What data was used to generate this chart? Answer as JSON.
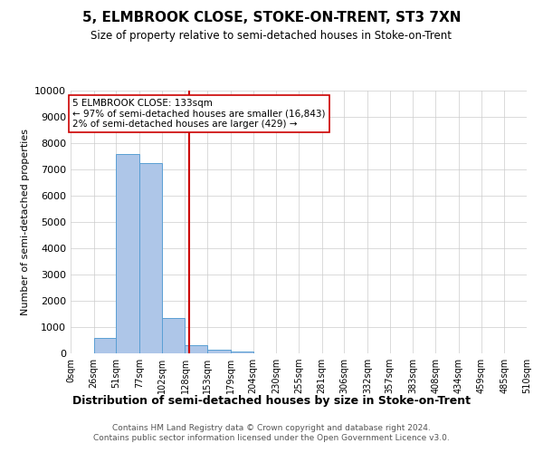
{
  "title": "5, ELMBROOK CLOSE, STOKE-ON-TRENT, ST3 7XN",
  "subtitle": "Size of property relative to semi-detached houses in Stoke-on-Trent",
  "xlabel": "Distribution of semi-detached houses by size in Stoke-on-Trent",
  "ylabel": "Number of semi-detached properties",
  "bin_edges": [
    0,
    26,
    51,
    77,
    102,
    128,
    153,
    179,
    204,
    230,
    255,
    281,
    306,
    332,
    357,
    383,
    408,
    434,
    459,
    485,
    510
  ],
  "bar_heights": [
    0,
    600,
    7600,
    7250,
    1350,
    300,
    150,
    80,
    0,
    0,
    0,
    0,
    0,
    0,
    0,
    0,
    0,
    0,
    0,
    0
  ],
  "bar_color": "#aec6e8",
  "bar_edgecolor": "#5a9fd4",
  "property_size": 133,
  "property_line_color": "#cc0000",
  "annotation_text": "5 ELMBROOK CLOSE: 133sqm\n← 97% of semi-detached houses are smaller (16,843)\n2% of semi-detached houses are larger (429) →",
  "annotation_box_edgecolor": "#cc0000",
  "annotation_box_facecolor": "#ffffff",
  "ylim": [
    0,
    10000
  ],
  "yticks": [
    0,
    1000,
    2000,
    3000,
    4000,
    5000,
    6000,
    7000,
    8000,
    9000,
    10000
  ],
  "footer": "Contains HM Land Registry data © Crown copyright and database right 2024.\nContains public sector information licensed under the Open Government Licence v3.0.",
  "tick_labels": [
    "0sqm",
    "26sqm",
    "51sqm",
    "77sqm",
    "102sqm",
    "128sqm",
    "153sqm",
    "179sqm",
    "204sqm",
    "230sqm",
    "255sqm",
    "281sqm",
    "306sqm",
    "332sqm",
    "357sqm",
    "383sqm",
    "408sqm",
    "434sqm",
    "459sqm",
    "485sqm",
    "510sqm"
  ]
}
